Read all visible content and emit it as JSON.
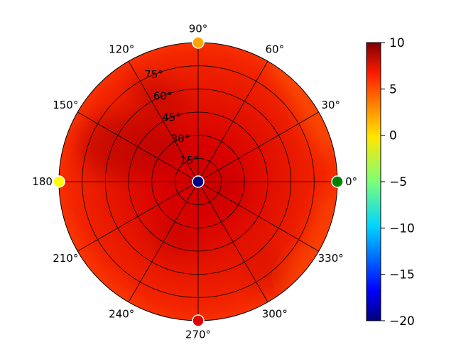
{
  "chart_data": {
    "type": "heatmap",
    "projection": "polar",
    "title": "",
    "theta_unit": "deg",
    "theta_ticks": [
      0,
      30,
      60,
      90,
      120,
      150,
      180,
      210,
      240,
      270,
      300,
      330
    ],
    "theta_tick_labels": [
      "0°",
      "30°",
      "60°",
      "90°",
      "120°",
      "150°",
      "180°",
      "210°",
      "240°",
      "270°",
      "300°",
      "330°"
    ],
    "r_ticks": [
      15,
      30,
      45,
      60,
      75
    ],
    "r_tick_labels": [
      "15°",
      "30°",
      "45°",
      "60°",
      "75°"
    ],
    "r_label_angle_deg": 112.5,
    "r_range": [
      0,
      90
    ],
    "grid": true,
    "colormap": "jet",
    "colorbar": {
      "range": [
        -20,
        10
      ],
      "ticks": [
        10,
        5,
        0,
        -5,
        -10,
        -15,
        -20
      ],
      "tick_labels": [
        "10",
        "5",
        "0",
        "−5",
        "−10",
        "−15",
        "−20"
      ]
    },
    "field_description": "Gain mostly 5 to 8 across the disk, highest (~8) on an inner ring around 30-45 deg radius between azimuth 100-200 deg, lowest (~2-4) near the rim between azimuth 300-45 deg.",
    "markers": [
      {
        "theta": 0,
        "r": 0,
        "value": -20,
        "color": "#000080"
      },
      {
        "theta": 0,
        "r": 90,
        "value": -5,
        "color": "#008000"
      },
      {
        "theta": 90,
        "r": 90,
        "value": 2,
        "color": "#ffa500"
      },
      {
        "theta": 180,
        "r": 90,
        "value": 0,
        "color": "#ffff00"
      },
      {
        "theta": 270,
        "r": 90,
        "value": 8,
        "color": "#dd0000"
      }
    ]
  }
}
